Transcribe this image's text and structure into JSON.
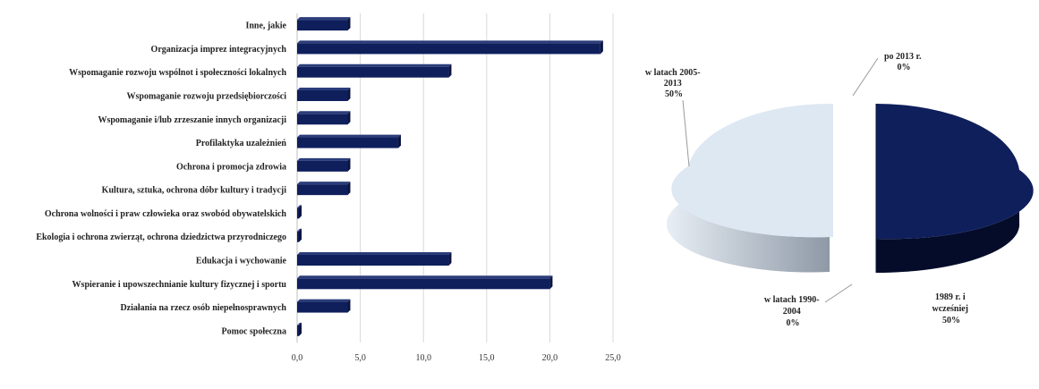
{
  "chart_data": [
    {
      "type": "bar",
      "orientation": "horizontal",
      "categories": [
        "Inne, jakie",
        "Organizacja imprez integracyjnych",
        "Wspomaganie rozwoju wspólnot i społeczności lokalnych",
        "Wspomaganie rozwoju przedsiębiorczości",
        "Wspomaganie i/lub zrzeszanie innych organizacji",
        "Profilaktyka uzależnień",
        "Ochrona  i promocja zdrowia",
        "Kultura, sztuka, ochrona dóbr kultury i tradycji",
        "Ochrona wolności i praw człowieka oraz swobód obywatelskich",
        "Ekologia  i ochrona zwierząt, ochrona dziedzictwa przyrodniczego",
        "Edukacja i wychowanie",
        "Wspieranie i upowszechnianie kultury fizycznej i sportu",
        "Działania na rzecz osób niepełnosprawnych",
        "Pomoc społeczna"
      ],
      "values": [
        4,
        24,
        12,
        4,
        4,
        8,
        4,
        4,
        0,
        0,
        12,
        20,
        4,
        0
      ],
      "xlim": [
        0,
        25
      ],
      "ticks": [
        "0,0",
        "5,0",
        "10,0",
        "15,0",
        "20,0",
        "25,0"
      ],
      "grid": true,
      "bar_color": "#0f1f5c"
    },
    {
      "type": "pie",
      "style": "3d-exploded",
      "slices": [
        {
          "label": "1989 r. i wcześniej",
          "value": 50,
          "percent": "50%",
          "color": "#0f1f5c"
        },
        {
          "label": "w latach 1990-2004",
          "value": 0,
          "percent": "0%",
          "color": "#9aa7b8"
        },
        {
          "label": "w latach 2005-2013",
          "value": 50,
          "percent": "50%",
          "color": "#dde8f3"
        },
        {
          "label": "po 2013 r.",
          "value": 0,
          "percent": "0%",
          "color": "#cccccc"
        }
      ],
      "label_lines": {
        "s0": [
          "1989 r. i",
          "wcześniej",
          "50%"
        ],
        "s1": [
          "w latach 1990-",
          "2004",
          "0%"
        ],
        "s2": [
          "w latach 2005-",
          "2013",
          "50%"
        ],
        "s3": [
          "po 2013 r.",
          "0%"
        ]
      }
    }
  ]
}
